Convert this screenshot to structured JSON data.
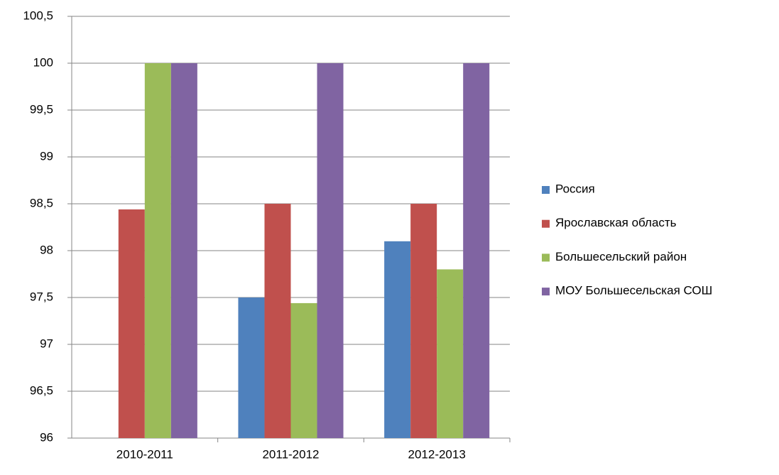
{
  "chart_data": {
    "type": "bar",
    "categories": [
      "2010-2011",
      "2011-2012",
      "2012-2013"
    ],
    "series": [
      {
        "name": "Россия",
        "color": "#4f81bd",
        "values": [
          null,
          97.5,
          98.1
        ]
      },
      {
        "name": "Ярославская область",
        "color": "#c0504d",
        "values": [
          98.44,
          98.5,
          98.5
        ]
      },
      {
        "name": "Большесельский район",
        "color": "#9bbb59",
        "values": [
          100,
          97.44,
          97.8
        ]
      },
      {
        "name": "МОУ Большесельская СОШ",
        "color": "#8064a2",
        "values": [
          100,
          100,
          100
        ]
      }
    ],
    "ylim": [
      96,
      100.5
    ],
    "yticks": [
      96,
      {
        "value": 96.5,
        "label": "96,5"
      },
      97,
      {
        "value": 97.5,
        "label": "97,5"
      },
      98,
      {
        "value": 98.5,
        "label": "98,5"
      },
      99,
      {
        "value": 99.5,
        "label": "99,5"
      },
      100,
      {
        "value": 100.5,
        "label": "100,5"
      }
    ],
    "grid": true,
    "legend": "right"
  }
}
